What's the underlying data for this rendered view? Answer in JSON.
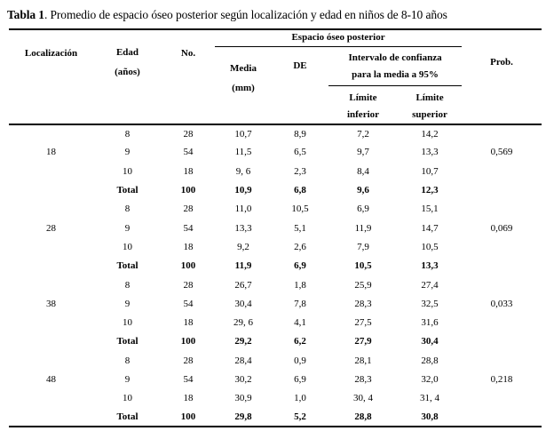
{
  "caption": {
    "label": "Tabla 1",
    "text": ". Promedio de espacio óseo posterior según localización y edad en niños de 8-10 años"
  },
  "table": {
    "headers": {
      "localizacion": "Localización",
      "edad_line1": "Edad",
      "edad_line2": "(años)",
      "no": "No.",
      "espacio_oseo": "Espacio óseo posterior",
      "media_line1": "Media",
      "media_line2": "(mm)",
      "de": "DE",
      "intervalo_line1": "Intervalo de confianza",
      "intervalo_line2": "para la media a 95%",
      "limite_inferior_line1": "Límite",
      "limite_inferior_line2": "inferior",
      "limite_superior_line1": "Límite",
      "limite_superior_line2": "superior",
      "prob": "Prob."
    },
    "groups": [
      {
        "localizacion": "18",
        "prob": "0,569",
        "rows": [
          {
            "edad": "8",
            "no": "28",
            "media": "10,7",
            "de": "8,9",
            "li": "7,2",
            "ls": "14,2",
            "bold": false
          },
          {
            "edad": "9",
            "no": "54",
            "media": "11,5",
            "de": "6,5",
            "li": "9,7",
            "ls": "13,3",
            "bold": false
          },
          {
            "edad": "10",
            "no": "18",
            "media": "9, 6",
            "de": "2,3",
            "li": "8,4",
            "ls": "10,7",
            "bold": false
          },
          {
            "edad": "Total",
            "no": "100",
            "media": "10,9",
            "de": "6,8",
            "li": "9,6",
            "ls": "12,3",
            "bold": true
          }
        ]
      },
      {
        "localizacion": "28",
        "prob": "0,069",
        "rows": [
          {
            "edad": "8",
            "no": "28",
            "media": "11,0",
            "de": "10,5",
            "li": "6,9",
            "ls": "15,1",
            "bold": false
          },
          {
            "edad": "9",
            "no": "54",
            "media": "13,3",
            "de": "5,1",
            "li": "11,9",
            "ls": "14,7",
            "bold": false
          },
          {
            "edad": "10",
            "no": "18",
            "media": "9,2",
            "de": "2,6",
            "li": "7,9",
            "ls": "10,5",
            "bold": false
          },
          {
            "edad": "Total",
            "no": "100",
            "media": "11,9",
            "de": "6,9",
            "li": "10,5",
            "ls": "13,3",
            "bold": true
          }
        ]
      },
      {
        "localizacion": "38",
        "prob": "0,033",
        "rows": [
          {
            "edad": "8",
            "no": "28",
            "media": "26,7",
            "de": "1,8",
            "li": "25,9",
            "ls": "27,4",
            "bold": false
          },
          {
            "edad": "9",
            "no": "54",
            "media": "30,4",
            "de": "7,8",
            "li": "28,3",
            "ls": "32,5",
            "bold": false
          },
          {
            "edad": "10",
            "no": "18",
            "media": "29, 6",
            "de": "4,1",
            "li": "27,5",
            "ls": "31,6",
            "bold": false
          },
          {
            "edad": "Total",
            "no": "100",
            "media": "29,2",
            "de": "6,2",
            "li": "27,9",
            "ls": "30,4",
            "bold": true
          }
        ]
      },
      {
        "localizacion": "48",
        "prob": "0,218",
        "rows": [
          {
            "edad": "8",
            "no": "28",
            "media": "28,4",
            "de": "0,9",
            "li": "28,1",
            "ls": "28,8",
            "bold": false
          },
          {
            "edad": "9",
            "no": "54",
            "media": "30,2",
            "de": "6,9",
            "li": "28,3",
            "ls": "32,0",
            "bold": false
          },
          {
            "edad": "10",
            "no": "18",
            "media": "30,9",
            "de": "1,0",
            "li": "30, 4",
            "ls": "31, 4",
            "bold": false
          },
          {
            "edad": "Total",
            "no": "100",
            "media": "29,8",
            "de": "5,2",
            "li": "28,8",
            "ls": "30,8",
            "bold": true
          }
        ]
      }
    ]
  },
  "colors": {
    "text": "#000000",
    "background": "#ffffff",
    "rule": "#000000"
  }
}
